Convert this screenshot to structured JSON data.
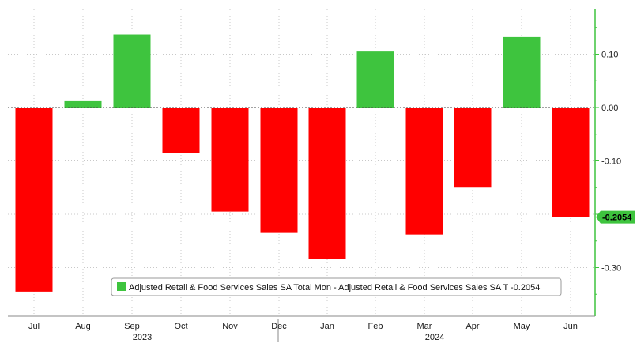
{
  "chart_data": {
    "type": "bar",
    "categories": [
      "Jul",
      "Aug",
      "Sep",
      "Oct",
      "Nov",
      "Dec",
      "Jan",
      "Feb",
      "Mar",
      "Apr",
      "May",
      "Jun"
    ],
    "values": [
      -0.345,
      0.012,
      0.137,
      -0.085,
      -0.195,
      -0.235,
      -0.283,
      0.105,
      -0.238,
      -0.15,
      0.132,
      -0.2054
    ],
    "year_labels": [
      "2023",
      "2024"
    ],
    "ylim": [
      -0.39,
      0.18
    ],
    "yticks": [
      0.1,
      0.0,
      -0.1,
      -0.2,
      -0.3
    ],
    "ytick_labels": [
      "0.10",
      "0.00",
      "-0.10",
      "",
      "-0.30"
    ],
    "last_value_label": "-0.2054",
    "legend": {
      "placement": "bottom-center",
      "text": "Adjusted Retail & Food Services Sales SA Total Mon - Adjusted Retail & Food Services Sales SA T  -0.2054"
    },
    "grid": true,
    "y_axis_side": "right",
    "colors": {
      "positive": "#3ec43e",
      "negative": "#ff0000",
      "axis": "#3ec43e",
      "last_label_bg": "#3ec43e",
      "grid": "#c8c8c8"
    }
  }
}
